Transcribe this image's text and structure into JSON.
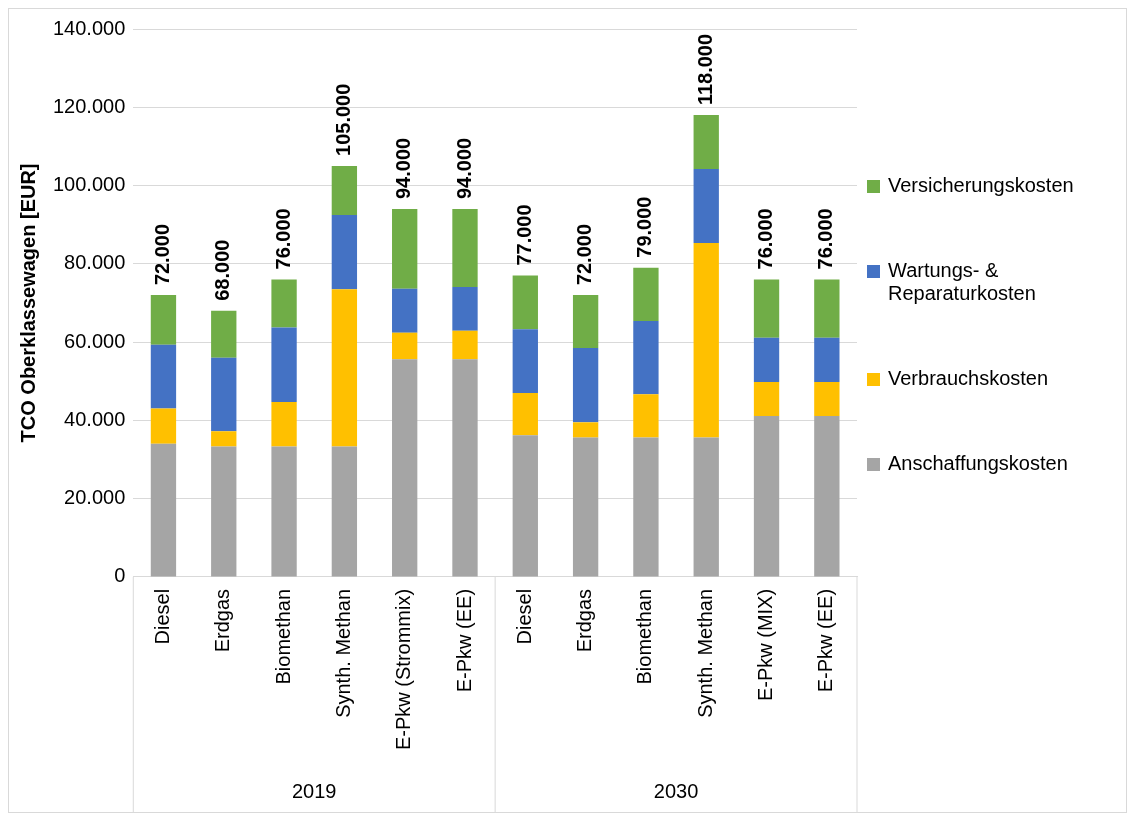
{
  "chart_data": {
    "type": "bar",
    "stacked": true,
    "ylabel": "TCO Oberklassewagen [EUR]",
    "categories": [
      "Diesel",
      "Erdgas",
      "Biomethan",
      "Synth. Methan",
      "E-Pkw (Strommix)",
      "E-Pkw (EE)",
      "Diesel",
      "Erdgas",
      "Biomethan",
      "Synth. Methan",
      "E-Pkw (MIX)",
      "E-Pkw (EE)"
    ],
    "series": [
      {
        "name": "Anschaffungskosten",
        "color": "#a5a5a5",
        "values": [
          34000,
          33300,
          33300,
          33300,
          55600,
          55600,
          36200,
          35600,
          35600,
          35600,
          41100,
          41100
        ]
      },
      {
        "name": "Verbrauchskosten",
        "color": "#ffc000",
        "values": [
          9000,
          3900,
          11400,
          40200,
          6800,
          7300,
          10800,
          3900,
          11100,
          49700,
          8700,
          8700
        ]
      },
      {
        "name": "Wartungs- & Reparaturkosten",
        "color": "#4472c4",
        "values": [
          16300,
          18800,
          19000,
          19000,
          11200,
          11200,
          16300,
          19000,
          18700,
          18900,
          11300,
          11300
        ]
      },
      {
        "name": "Versicherungskosten",
        "color": "#70ad47",
        "values": [
          12700,
          12000,
          12300,
          12500,
          20400,
          19900,
          13700,
          13500,
          13600,
          13800,
          14900,
          14900
        ]
      }
    ],
    "totals": [
      "72.000",
      "68.000",
      "76.000",
      "105.000",
      "94.000",
      "94.000",
      "77.000",
      "72.000",
      "79.000",
      "118.000",
      "76.000",
      "76.000"
    ],
    "ylim": [
      0,
      140000
    ],
    "yticks": [
      0,
      {
        "value": 20000,
        "label": "20.000"
      },
      {
        "value": 40000,
        "label": "40.000"
      },
      {
        "value": 60000,
        "label": "60.000"
      },
      {
        "value": 80000,
        "label": "80.000"
      },
      {
        "value": 100000,
        "label": "100.000"
      },
      {
        "value": 120000,
        "label": "120.000"
      },
      {
        "value": 140000,
        "label": "140.000"
      }
    ],
    "grid": "y",
    "legend": "right",
    "annotations": [
      "2019",
      "2030"
    ]
  }
}
